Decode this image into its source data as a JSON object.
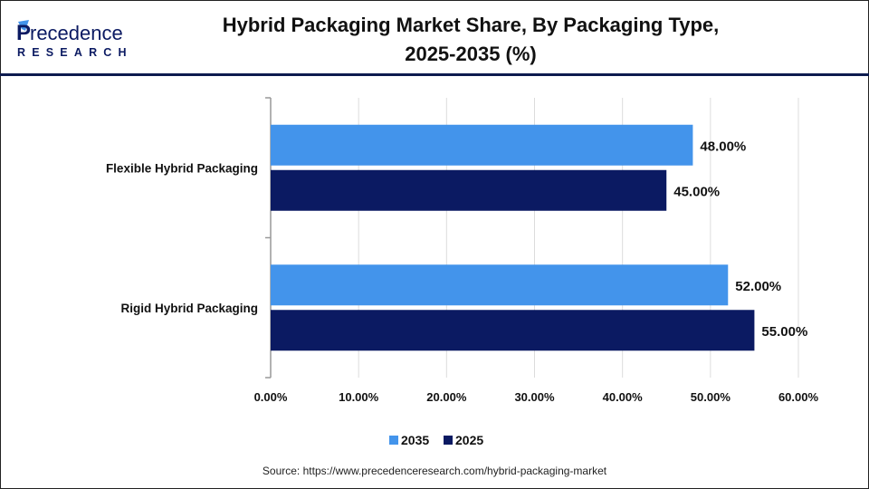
{
  "logo": {
    "line1": "Precedence",
    "line2": "RESEARCH"
  },
  "chart_data": {
    "type": "bar",
    "orientation": "horizontal",
    "title": "Hybrid Packaging Market Share, By Packaging Type, 2025-2035 (%)",
    "title_lines": [
      "Hybrid Packaging Market Share, By Packaging Type,",
      "2025-2035 (%)"
    ],
    "categories": [
      "Flexible Hybrid Packaging",
      "Rigid Hybrid Packaging"
    ],
    "series": [
      {
        "name": "2035",
        "color": "#4394eb",
        "values": [
          48.0,
          52.0
        ],
        "labels": [
          "48.00%",
          "52.00%"
        ]
      },
      {
        "name": "2025",
        "color": "#0b1a62",
        "values": [
          45.0,
          55.0
        ],
        "labels": [
          "45.00%",
          "55.00%"
        ]
      }
    ],
    "xlim": [
      0,
      60
    ],
    "xticks": [
      0,
      10,
      20,
      30,
      40,
      50,
      60
    ],
    "xtick_labels": [
      "0.00%",
      "10.00%",
      "20.00%",
      "30.00%",
      "40.00%",
      "50.00%",
      "60.00%"
    ],
    "grid": true,
    "legend_position": "bottom"
  },
  "source": "Source: https://www.precedenceresearch.com/hybrid-packaging-market"
}
